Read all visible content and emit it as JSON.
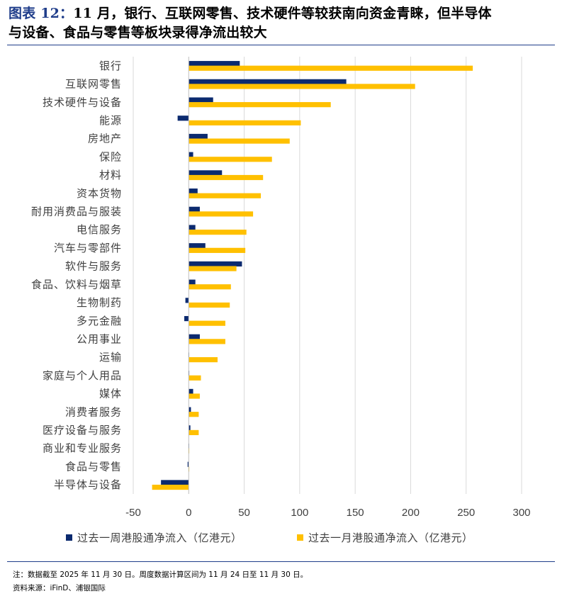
{
  "header": {
    "label": "图表 12：",
    "line1_rest": "11 月，银行、互联网零售、技术硬件等较获南向资金青睐，但半导体",
    "line2": "与设备、食品与零售等板块录得净流出较大"
  },
  "colors": {
    "weekly": "#0b2a6f",
    "monthly": "#ffc000",
    "rule": "#1f3d8a",
    "grid": "#d9d9d9"
  },
  "chart_data": {
    "type": "bar",
    "orientation": "horizontal",
    "categories": [
      "银行",
      "互联网零售",
      "技术硬件与设备",
      "能源",
      "房地产",
      "保险",
      "材料",
      "资本货物",
      "耐用消费品与服装",
      "电信服务",
      "汽车与零部件",
      "软件与服务",
      "食品、饮料与烟草",
      "生物制药",
      "多元金融",
      "公用事业",
      "运输",
      "家庭与个人用品",
      "媒体",
      "消费者服务",
      "医疗设备与服务",
      "商业和专业服务",
      "食品与零售",
      "半导体与设备"
    ],
    "series": [
      {
        "name": "过去一周港股通净流入（亿港元）",
        "values": [
          46,
          142,
          22,
          -10,
          17,
          4,
          30,
          8,
          10,
          6,
          15,
          48,
          6,
          -3,
          -4,
          10,
          0,
          0.5,
          4,
          2,
          1.5,
          0,
          -1,
          -25
        ]
      },
      {
        "name": "过去一月港股通净流入（亿港元）",
        "values": [
          256,
          204,
          128,
          101,
          91,
          75,
          67,
          65,
          58,
          52,
          51,
          43,
          38,
          37,
          33,
          33,
          26,
          11,
          10,
          9,
          9,
          0.5,
          0.5,
          -33
        ]
      }
    ],
    "xlim": [
      -50,
      300
    ],
    "xticks": [
      -50,
      0,
      50,
      100,
      150,
      200,
      250,
      300
    ],
    "xtick_labels": [
      "-50",
      "0",
      "50",
      "100",
      "150",
      "200",
      "250",
      "300"
    ],
    "grid": "vertical",
    "legend_position": "bottom"
  },
  "notes": {
    "line1": "注：数据截至 2025 年 11 月 30 日。周度数据计算区间为 11 月 24 日至 11 月 30 日。",
    "line2": "资料来源：iFinD、浦银国际"
  }
}
